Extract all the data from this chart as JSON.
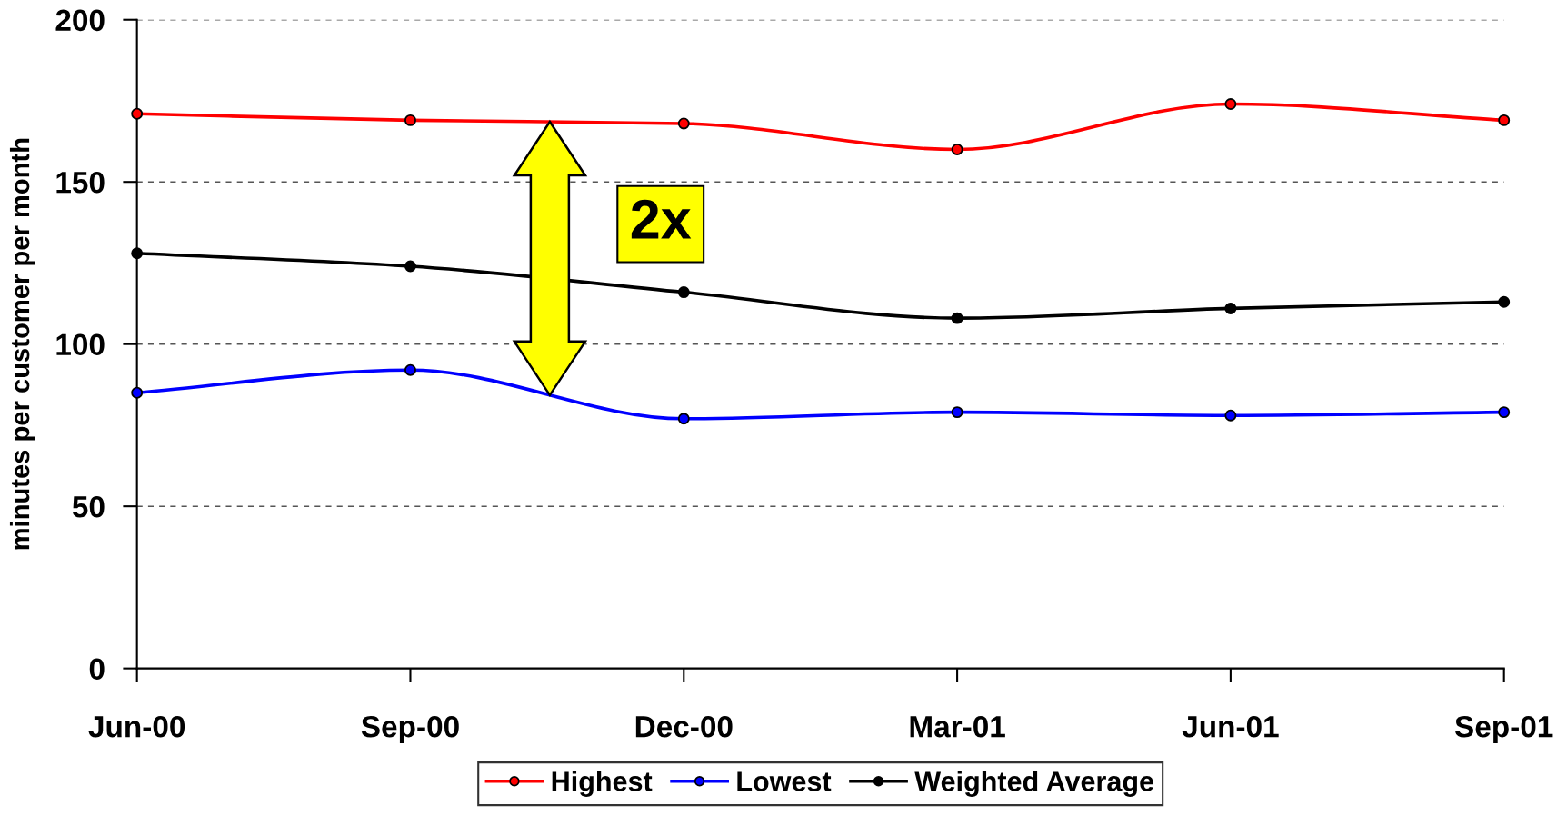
{
  "chart_data": {
    "type": "line",
    "ylabel": "minutes per customer per month",
    "categories": [
      "Jun-00",
      "Sep-00",
      "Dec-00",
      "Mar-01",
      "Jun-01",
      "Sep-01"
    ],
    "series": [
      {
        "name": "Highest",
        "color": "#ff0000",
        "values": [
          171,
          169,
          168,
          160,
          174,
          169
        ]
      },
      {
        "name": "Lowest",
        "color": "#0000ff",
        "values": [
          85,
          92,
          77,
          79,
          78,
          79
        ]
      },
      {
        "name": "Weighted Average",
        "color": "#000000",
        "values": [
          128,
          124,
          116,
          108,
          111,
          113
        ]
      }
    ],
    "ylim": [
      0,
      200
    ],
    "yticks": [
      0,
      50,
      100,
      150,
      200
    ],
    "grid": "y",
    "legend": "bottom",
    "marker": "circle",
    "line_style": "solid",
    "annotations": [
      "2x"
    ]
  }
}
